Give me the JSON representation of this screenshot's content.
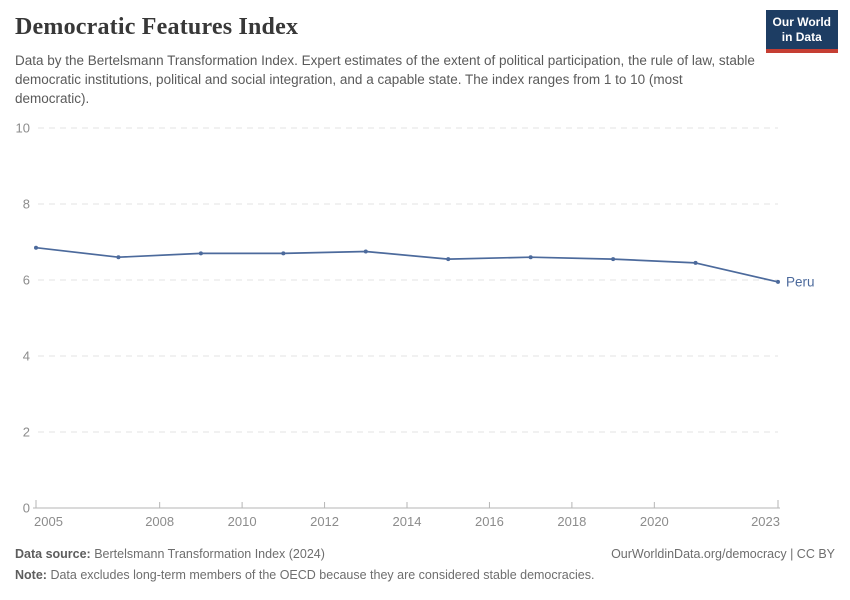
{
  "header": {
    "title": "Democratic Features Index",
    "subtitle": "Data by the Bertelsmann Transformation Index. Expert estimates of the extent of political participation, the rule of law, stable democratic institutions, political and social integration, and a capable state. The index ranges from 1 to 10 (most democratic).",
    "logo": {
      "line1": "Our World",
      "line2": "in Data"
    }
  },
  "chart_data": {
    "type": "line",
    "title": "Democratic Features Index",
    "series": [
      {
        "name": "Peru",
        "color": "#4C6A9C",
        "x": [
          2005,
          2007,
          2009,
          2011,
          2013,
          2015,
          2017,
          2019,
          2021,
          2023
        ],
        "values": [
          6.85,
          6.6,
          6.7,
          6.7,
          6.75,
          6.55,
          6.6,
          6.55,
          6.45,
          5.95
        ]
      }
    ],
    "xlabel": "",
    "ylabel": "",
    "xlim": [
      2005,
      2023
    ],
    "ylim": [
      0,
      10
    ],
    "yticks": [
      0,
      2,
      4,
      6,
      8,
      10
    ],
    "xticks": [
      2005,
      2008,
      2010,
      2012,
      2014,
      2016,
      2018,
      2020,
      2023
    ],
    "grid": "horizontal dashed",
    "legend_position": "end-of-line label",
    "end_label": "Peru"
  },
  "footer": {
    "source_label": "Data source:",
    "source_text": "Bertelsmann Transformation Index (2024)",
    "rights": "OurWorldinData.org/democracy | CC BY",
    "note_label": "Note:",
    "note_text": "Data excludes long-term members of the OECD because they are considered stable democracies."
  },
  "colors": {
    "accent_line": "#4C6A9C",
    "logo_bg": "#1d3d63",
    "logo_stripe": "#c53e33",
    "grid": "#e3e3e3",
    "axis": "#b6b6b6",
    "tick_label": "#8c8c8c",
    "title_text": "#383838",
    "subtitle_text": "#5a5a5a",
    "footer_text": "#6e6e6e"
  }
}
